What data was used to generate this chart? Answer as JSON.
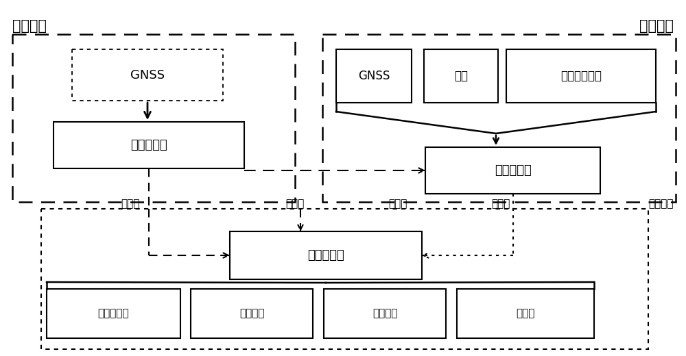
{
  "fig_width": 10.0,
  "fig_height": 5.2,
  "dpi": 100,
  "bg_color": "#ffffff",
  "label_land": "陆地部分",
  "label_water_surface": "水面部分",
  "label_underwater": "水下部分",
  "label_gnss_land": "GNSS",
  "label_land_base": "陆地基准点",
  "label_gnss_ship": "GNSS",
  "label_ins": "惯导",
  "label_sonar": "水声测距设备",
  "label_ship": "一体化测船",
  "label_seabed": "海底控制点",
  "label_transducer": "收发换能器",
  "label_control": "控制单元",
  "label_power": "供电单元",
  "label_gauge": "水位计",
  "label_znc1": "正常高",
  "label_znc2": "正常高",
  "label_znc3": "正常高",
  "label_ddc": "大地高"
}
